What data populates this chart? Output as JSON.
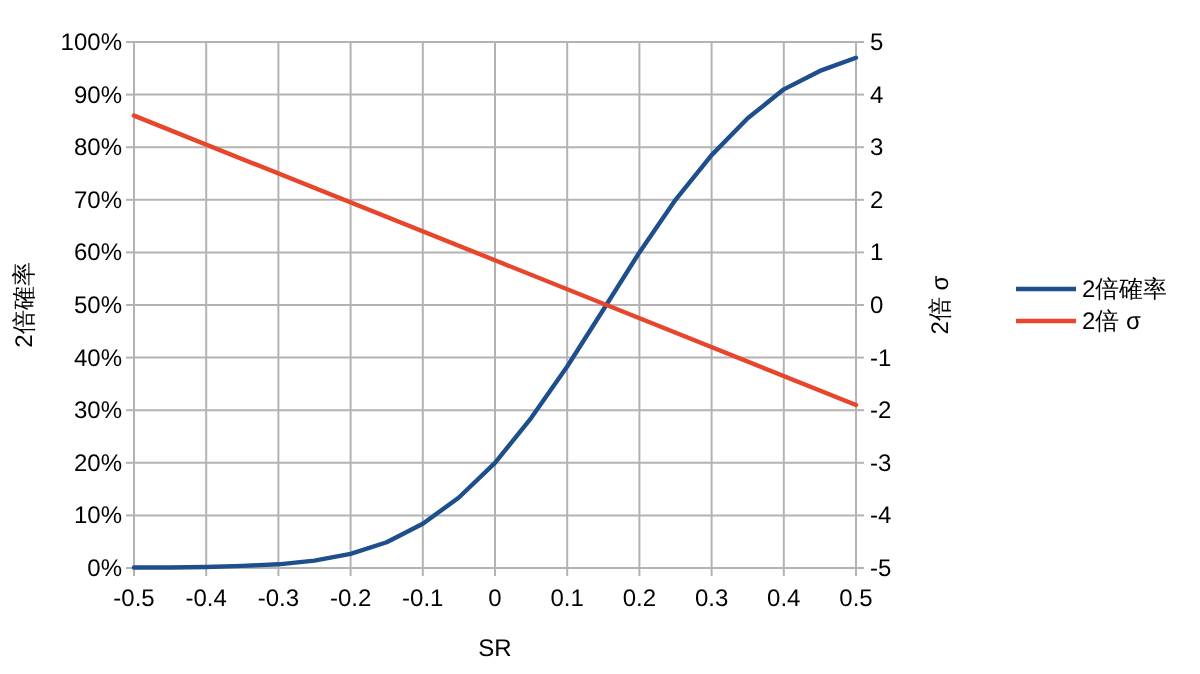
{
  "chart_data": {
    "type": "line",
    "xlabel": "SR",
    "ylabel": "2倍確率",
    "y2label": "2倍 σ",
    "x": [
      -0.5,
      -0.45,
      -0.4,
      -0.35,
      -0.3,
      -0.25,
      -0.2,
      -0.15,
      -0.1,
      -0.05,
      0,
      0.05,
      0.1,
      0.15,
      0.2,
      0.25,
      0.3,
      0.35,
      0.4,
      0.45,
      0.5
    ],
    "series": [
      {
        "name": "2倍確率",
        "color": "#1f4e8c",
        "values": [
          0.1,
          0.1,
          0.2,
          0.4,
          0.7,
          1.4,
          2.7,
          4.9,
          8.4,
          13.4,
          20.0,
          28.5,
          38.3,
          49.1,
          60.0,
          70.0,
          78.5,
          85.5,
          91.0,
          94.5,
          97.0
        ]
      },
      {
        "name": "2倍 σ",
        "color": "#e8452c",
        "axis": "y2",
        "x": [
          -0.5,
          0,
          0.5
        ],
        "values": [
          3.6,
          0.85,
          -1.9
        ]
      }
    ],
    "xlim": [
      -0.5,
      0.5
    ],
    "xticks": [
      -0.5,
      -0.4,
      -0.3,
      -0.2,
      -0.1,
      0,
      0.1,
      0.2,
      0.3,
      0.4,
      0.5
    ],
    "ylim": [
      0,
      100
    ],
    "yticks": [
      {
        "value": 0,
        "label": "0%"
      },
      {
        "value": 10,
        "label": "10%"
      },
      {
        "value": 20,
        "label": "20%"
      },
      {
        "value": 30,
        "label": "30%"
      },
      {
        "value": 40,
        "label": "40%"
      },
      {
        "value": 50,
        "label": "50%"
      },
      {
        "value": 60,
        "label": "60%"
      },
      {
        "value": 70,
        "label": "70%"
      },
      {
        "value": 80,
        "label": "80%"
      },
      {
        "value": 90,
        "label": "90%"
      },
      {
        "value": 100,
        "label": "100%"
      }
    ],
    "y2lim": [
      -5,
      5
    ],
    "y2ticks": [
      -5,
      -4,
      -3,
      -2,
      -1,
      0,
      1,
      2,
      3,
      4,
      5
    ],
    "grid": true,
    "legend": "right",
    "line_style": "solid",
    "marker": "none"
  }
}
